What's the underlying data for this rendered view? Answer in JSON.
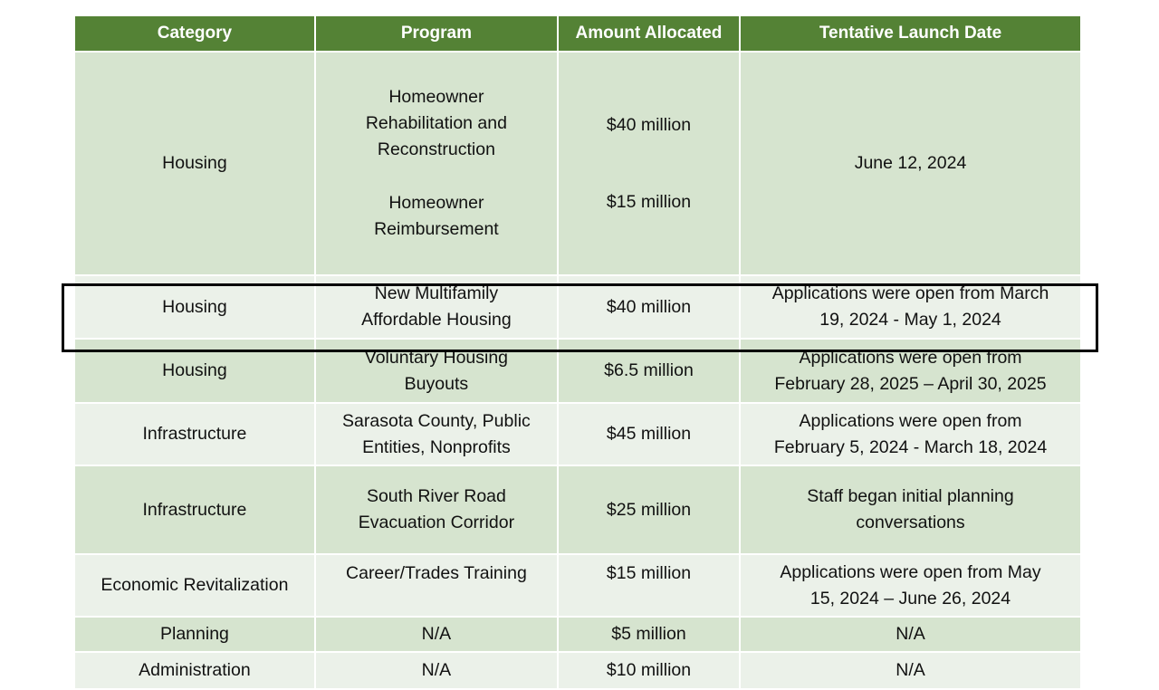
{
  "headers": [
    "Category",
    "Program",
    "Amount Allocated",
    "Tentative Launch Date"
  ],
  "rows": [
    {
      "category": "Housing",
      "programs": [
        "Homeowner\nRehabilitation and\nReconstruction",
        "Homeowner\nReimbursement"
      ],
      "amounts": [
        "$40 million",
        "$15 million"
      ],
      "date": "June 12, 2024"
    },
    {
      "category": "Housing",
      "program": "New Multifamily\nAffordable Housing",
      "amount": "$40 million",
      "date": "Applications were open from March\n19, 2024 - May 1, 2024"
    },
    {
      "category": "Housing",
      "program": "Voluntary Housing\nBuyouts",
      "amount": "$6.5 million",
      "date": "Applications were open from\nFebruary 28, 2025 – April 30, 2025",
      "highlighted": true
    },
    {
      "category": "Infrastructure",
      "program": "Sarasota County, Public\nEntities, Nonprofits",
      "amount": "$45 million",
      "date": "Applications were open from\nFebruary 5, 2024 - March 18, 2024"
    },
    {
      "category": "Infrastructure",
      "program": "South River Road\nEvacuation Corridor",
      "amount": "$25 million",
      "date": "Staff began initial planning\nconversations"
    },
    {
      "category": "Economic Revitalization",
      "program": "Career/Trades Training",
      "amount": "$15 million",
      "date": "Applications were open from May\n15, 2024 – June 26, 2024"
    },
    {
      "category": "Planning",
      "program": "N/A",
      "amount": "$5 million",
      "date": "N/A"
    },
    {
      "category": "Administration",
      "program": "N/A",
      "amount": "$10 million",
      "date": "N/A"
    }
  ],
  "colors": {
    "header": "#548235",
    "row_dark": "#d6e4cf",
    "row_light": "#ebf1e9",
    "highlight_border": "#000000"
  }
}
